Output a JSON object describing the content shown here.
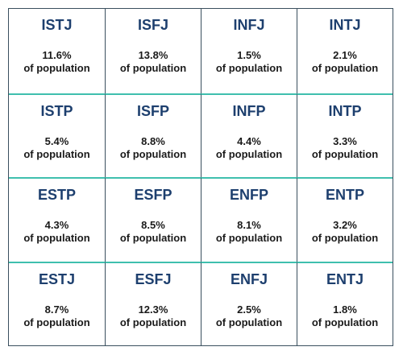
{
  "types": [
    {
      "code": "ISTJ",
      "percent": "11.6%",
      "label": "of population"
    },
    {
      "code": "ISFJ",
      "percent": "13.8%",
      "label": "of population"
    },
    {
      "code": "INFJ",
      "percent": "1.5%",
      "label": "of population"
    },
    {
      "code": "INTJ",
      "percent": "2.1%",
      "label": "of population"
    },
    {
      "code": "ISTP",
      "percent": "5.4%",
      "label": "of population"
    },
    {
      "code": "ISFP",
      "percent": "8.8%",
      "label": "of population"
    },
    {
      "code": "INFP",
      "percent": "4.4%",
      "label": "of population"
    },
    {
      "code": "INTP",
      "percent": "3.3%",
      "label": "of population"
    },
    {
      "code": "ESTP",
      "percent": "4.3%",
      "label": "of population"
    },
    {
      "code": "ESFP",
      "percent": "8.5%",
      "label": "of population"
    },
    {
      "code": "ENFP",
      "percent": "8.1%",
      "label": "of population"
    },
    {
      "code": "ENTP",
      "percent": "3.2%",
      "label": "of population"
    },
    {
      "code": "ESTJ",
      "percent": "8.7%",
      "label": "of population"
    },
    {
      "code": "ESFJ",
      "percent": "12.3%",
      "label": "of population"
    },
    {
      "code": "ENFJ",
      "percent": "2.5%",
      "label": "of population"
    },
    {
      "code": "ENTJ",
      "percent": "1.8%",
      "label": "of population"
    }
  ],
  "colors": {
    "type_text": "#1d3f6e",
    "body_text": "#1a1a1a",
    "row_divider": "#3fbfae",
    "border": "#3a4f5e"
  }
}
